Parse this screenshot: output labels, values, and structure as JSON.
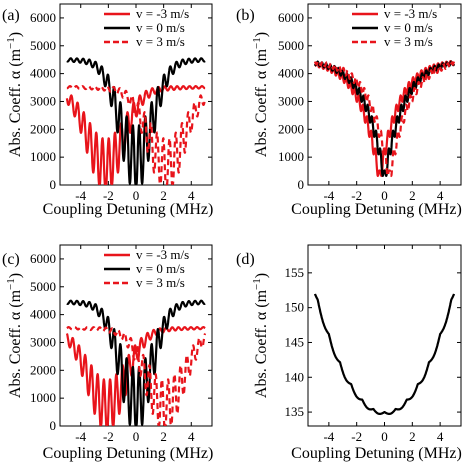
{
  "colors": {
    "red": "#e8141b",
    "black": "#000000"
  },
  "chart_data": [
    {
      "panel_label": "(a)",
      "type": "line",
      "xlabel": "Coupling Detuning (MHz)",
      "ylabel_main": "Abs. Coeff. α (m",
      "ylabel_sup": "−1",
      "ylabel_end": ")",
      "xlim": [
        -5.5,
        5.5
      ],
      "ylim": [
        0,
        6500
      ],
      "xticks": [
        -4,
        -2,
        0,
        2,
        4
      ],
      "xtick_labels": [
        "-4",
        "-2",
        "0",
        "2",
        "4"
      ],
      "yticks": [
        0,
        1000,
        2000,
        3000,
        4000,
        5000,
        6000
      ],
      "ytick_labels": [
        "0",
        "1000",
        "2000",
        "3000",
        "4000",
        "5000",
        "6000"
      ],
      "legend": [
        "v = -3 m/s",
        "v = 0 m/s",
        "v = 3 m/s"
      ],
      "legend_position": "top-center",
      "series": [
        {
          "name": "v = -3 m/s",
          "color": "red",
          "style": "solid",
          "shape": "shifted",
          "center": -2.2,
          "base": 3550,
          "depth": 3450,
          "width": 2.1,
          "osc": 750,
          "spacing": 0.45
        },
        {
          "name": "v = 0 m/s",
          "color": "black",
          "style": "solid",
          "shape": "centered",
          "center": 0.0,
          "base": 4550,
          "depth": 4450,
          "width": 1.9,
          "osc": 650,
          "spacing": 0.45
        },
        {
          "name": "v = 3 m/s",
          "color": "red",
          "style": "dashed",
          "shape": "shifted",
          "center": 2.2,
          "base": 3550,
          "depth": 3450,
          "width": 2.1,
          "osc": 750,
          "spacing": 0.45
        }
      ]
    },
    {
      "panel_label": "(b)",
      "type": "line",
      "xlabel": "Coupling Detuning (MHz)",
      "ylabel_main": "Abs. Coeff. α (m",
      "ylabel_sup": "−1",
      "ylabel_end": ")",
      "xlim": [
        -5.5,
        5.5
      ],
      "ylim": [
        0,
        6500
      ],
      "xticks": [
        -4,
        -2,
        0,
        2,
        4
      ],
      "xtick_labels": [
        "-4",
        "-2",
        "0",
        "2",
        "4"
      ],
      "yticks": [
        0,
        1000,
        2000,
        3000,
        4000,
        5000,
        6000
      ],
      "ytick_labels": [
        "0",
        "1000",
        "2000",
        "3000",
        "4000",
        "5000",
        "6000"
      ],
      "legend": [
        "v = -3 m/s",
        "v = 0 m/s",
        "v = 3 m/s"
      ],
      "legend_position": "top-center",
      "series": [
        {
          "name": "v = -3 m/s",
          "color": "red",
          "style": "solid",
          "shape": "vee",
          "center": -0.35,
          "base": 4650,
          "depth": 4450,
          "width": 2.6,
          "osc": 320,
          "spacing": 0.3
        },
        {
          "name": "v = 0 m/s",
          "color": "black",
          "style": "solid",
          "shape": "vee",
          "center": 0.0,
          "base": 4650,
          "depth": 4450,
          "width": 2.6,
          "osc": 320,
          "spacing": 0.3
        },
        {
          "name": "v = 3 m/s",
          "color": "red",
          "style": "dashed",
          "shape": "vee",
          "center": 0.35,
          "base": 4650,
          "depth": 4450,
          "width": 2.6,
          "osc": 320,
          "spacing": 0.3
        }
      ]
    },
    {
      "panel_label": "(c)",
      "type": "line",
      "xlabel": "Coupling Detuning (MHz)",
      "ylabel_main": "Abs. Coeff. α (m",
      "ylabel_sup": "−1",
      "ylabel_end": ")",
      "xlim": [
        -5.5,
        5.5
      ],
      "ylim": [
        0,
        6500
      ],
      "xticks": [
        -4,
        -2,
        0,
        2,
        4
      ],
      "xtick_labels": [
        "-4",
        "-2",
        "0",
        "2",
        "4"
      ],
      "yticks": [
        0,
        1000,
        2000,
        3000,
        4000,
        5000,
        6000
      ],
      "ytick_labels": [
        "0",
        "1000",
        "2000",
        "3000",
        "4000",
        "5000",
        "6000"
      ],
      "legend": [
        "v = -3 m/s",
        "v = 0 m/s",
        "v = 3 m/s"
      ],
      "legend_position": "top-center",
      "series": [
        {
          "name": "v = -3 m/s",
          "color": "red",
          "style": "solid",
          "shape": "shifted",
          "center": -2.1,
          "base": 3550,
          "depth": 3450,
          "width": 2.2,
          "osc": 650,
          "spacing": 0.45
        },
        {
          "name": "v = 0 m/s",
          "color": "black",
          "style": "solid",
          "shape": "centered",
          "center": 0.0,
          "base": 4500,
          "depth": 4400,
          "width": 1.9,
          "osc": 650,
          "spacing": 0.45
        },
        {
          "name": "v = 3 m/s",
          "color": "red",
          "style": "dashed",
          "shape": "shifted",
          "center": 2.1,
          "base": 3550,
          "depth": 3450,
          "width": 2.2,
          "osc": 650,
          "spacing": 0.45
        }
      ]
    },
    {
      "panel_label": "(d)",
      "type": "line",
      "xlabel": "Coupling Detuning (MHz)",
      "ylabel_main": "Abs. Coeff. α (m",
      "ylabel_sup": "−1",
      "ylabel_end": ")",
      "xlim": [
        -5.5,
        5.5
      ],
      "ylim": [
        133,
        159
      ],
      "xticks": [
        -4,
        -2,
        0,
        2,
        4
      ],
      "xtick_labels": [
        "-4",
        "-2",
        "0",
        "2",
        "4"
      ],
      "yticks": [
        135,
        140,
        145,
        150,
        155
      ],
      "ytick_labels": [
        "135",
        "140",
        "145",
        "150",
        "155"
      ],
      "legend": [],
      "series": [
        {
          "name": "",
          "color": "black",
          "style": "solid",
          "shape": "parabola",
          "center": 0.0,
          "base": 135.0,
          "curv": 0.7,
          "osc": 0.75,
          "spacing": 0.8
        }
      ]
    }
  ]
}
